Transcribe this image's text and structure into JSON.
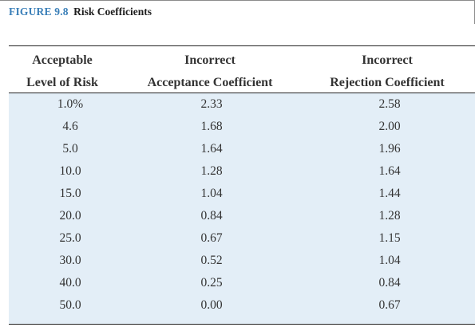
{
  "caption": {
    "figure_number": "FIGURE 9.8",
    "title": "Risk Coefficients"
  },
  "table": {
    "headers": [
      {
        "line1": "Acceptable",
        "line2": "Level of Risk"
      },
      {
        "line1": "Incorrect",
        "line2": "Acceptance Coefficient"
      },
      {
        "line1": "Incorrect",
        "line2": "Rejection Coefficient"
      }
    ],
    "rows": [
      [
        "1.0%",
        "2.33",
        "2.58"
      ],
      [
        "4.6",
        "1.68",
        "2.00"
      ],
      [
        "5.0",
        "1.64",
        "1.96"
      ],
      [
        "10.0",
        "1.28",
        "1.64"
      ],
      [
        "15.0",
        "1.04",
        "1.44"
      ],
      [
        "20.0",
        "0.84",
        "1.28"
      ],
      [
        "25.0",
        "0.67",
        "1.15"
      ],
      [
        "30.0",
        "0.52",
        "1.04"
      ],
      [
        "40.0",
        "0.25",
        "0.84"
      ],
      [
        "50.0",
        "0.00",
        "0.67"
      ]
    ]
  },
  "colors": {
    "figure_number": "#3a7fb8",
    "table_background": "#e3eef7",
    "header_background": "#ffffff",
    "rule": "#222222"
  }
}
